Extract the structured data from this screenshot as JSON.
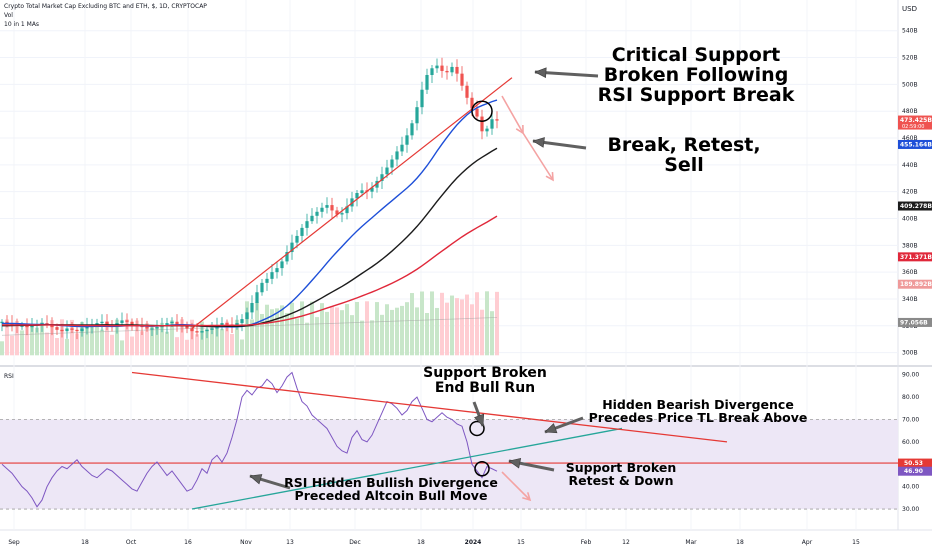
{
  "header": {
    "title": "Crypto Total Market Cap Excluding BTC and ETH, $, 1D, CRYPTOCAP",
    "vol": "Vol",
    "ma": "10 in 1 MAs",
    "currency": "USD"
  },
  "rsi_panel": {
    "label": "RSI"
  },
  "annotations": {
    "critical": [
      "Critical Support",
      "Broken Following",
      "RSI Support Break"
    ],
    "break_retest": "Break, Retest, Sell",
    "support_end": [
      "Support Broken",
      "End Bull Run"
    ],
    "hidden_bear": [
      "Hidden Bearish Divergence",
      "Precedes Price TL Break Above"
    ],
    "support_retest": [
      "Support Broken",
      "Retest & Down"
    ],
    "hidden_bull": [
      "RSI Hidden Bullish Divergence",
      "Preceded Altcoin Bull Move"
    ]
  },
  "colors": {
    "up": "#26a69a",
    "down": "#ef5350",
    "trend_red": "#e53935",
    "ma_blue": "#1e4fd8",
    "ma_black": "#1c1c1c",
    "ma_red": "#e0283a",
    "rsi_line": "#7e57c2",
    "rsi_support": "#26a69a",
    "vol_up": "#c8e6c9",
    "vol_down": "#ffcdd2",
    "rsi_band": "#ede7f6"
  },
  "chart_data": [
    {
      "type": "candlestick",
      "title": "Crypto Total Market Cap Excluding BTC and ETH, $, 1D, CRYPTOCAP",
      "ylabel": "USD",
      "x_ticks": [
        "Sep",
        "18",
        "Oct",
        "16",
        "Nov",
        "13",
        "Dec",
        "18",
        "2024",
        "15",
        "Feb",
        "12",
        "Mar",
        "18",
        "Apr",
        "15"
      ],
      "y_ticks": [
        "300B",
        "320B",
        "340B",
        "360B",
        "380B",
        "400B",
        "420B",
        "440B",
        "460B",
        "480B",
        "500B",
        "520B",
        "540B"
      ],
      "ylim": [
        293,
        548
      ],
      "price_labels": [
        {
          "label": "473.425B",
          "sub": "02:59:00",
          "value": 473.4,
          "color": "#ef5350"
        },
        {
          "label": "455.164B",
          "value": 455.2,
          "color": "#1e4fd8"
        },
        {
          "label": "409.278B",
          "value": 409.3,
          "color": "#1c1c1c"
        },
        {
          "label": "371.371B",
          "value": 371.4,
          "color": "#e0283a"
        },
        {
          "label": "189.892B",
          "value": 351.0,
          "color": "#ef9a9a"
        },
        {
          "label": "97.056B",
          "value": 322.5,
          "color": "#8a8a8a"
        }
      ],
      "close_series_billions": [
        323,
        322,
        321,
        320,
        320,
        319,
        320,
        321,
        322,
        321,
        319,
        317,
        316,
        318,
        317,
        316,
        318,
        320,
        321,
        322,
        323,
        321,
        320,
        322,
        324,
        323,
        321,
        320,
        319,
        318,
        318,
        319,
        320,
        322,
        323,
        321,
        320,
        318,
        316,
        315,
        316,
        317,
        318,
        320,
        322,
        321,
        320,
        322,
        325,
        330,
        337,
        345,
        352,
        355,
        360,
        363,
        368,
        375,
        382,
        387,
        393,
        398,
        402,
        405,
        408,
        410,
        406,
        403,
        404,
        409,
        415,
        419,
        421,
        420,
        423,
        428,
        433,
        438,
        444,
        450,
        455,
        462,
        471,
        483,
        496,
        507,
        512,
        514,
        510,
        509,
        513,
        508,
        499,
        490,
        482,
        476,
        465,
        467,
        474,
        473
      ],
      "volume_note": "Vol histogram, no value labels"
    },
    {
      "type": "line",
      "title": "RSI",
      "y_ticks": [
        "30.00",
        "40.00",
        "50.00",
        "60.00",
        "70.00",
        "80.00",
        "90.00"
      ],
      "ylim": [
        26,
        93
      ],
      "bands": [
        30,
        70
      ],
      "support_level": 50.53,
      "value_labels": [
        {
          "label": "50.53",
          "color": "#e53935"
        },
        {
          "label": "46.90",
          "color": "#7e57c2"
        }
      ],
      "rsi_series": [
        50,
        48,
        46,
        43,
        40,
        38,
        35,
        31,
        34,
        40,
        44,
        47,
        49,
        48,
        50,
        52,
        49,
        47,
        45,
        44,
        46,
        48,
        47,
        45,
        43,
        41,
        39,
        38,
        42,
        46,
        49,
        51,
        48,
        45,
        47,
        44,
        41,
        38,
        39,
        43,
        48,
        46,
        52,
        54,
        51,
        55,
        62,
        70,
        80,
        83,
        81,
        84,
        85,
        88,
        86,
        82,
        85,
        89,
        91,
        84,
        78,
        76,
        72,
        70,
        68,
        66,
        62,
        58,
        56,
        55,
        62,
        65,
        61,
        60,
        63,
        68,
        73,
        78,
        77,
        75,
        72,
        74,
        78,
        80,
        75,
        70,
        69,
        71,
        73,
        71,
        70,
        68,
        67,
        60,
        50,
        47,
        44,
        49,
        48,
        46.9
      ],
      "trend_lines": [
        {
          "name": "hidden_bullish_support",
          "from": [
            -82,
            30
          ],
          "to": [
            4,
            66
          ]
        },
        {
          "name": "hidden_bearish_resistance",
          "from": [
            -94,
            91
          ],
          "to": [
            25,
            60
          ]
        }
      ]
    }
  ]
}
